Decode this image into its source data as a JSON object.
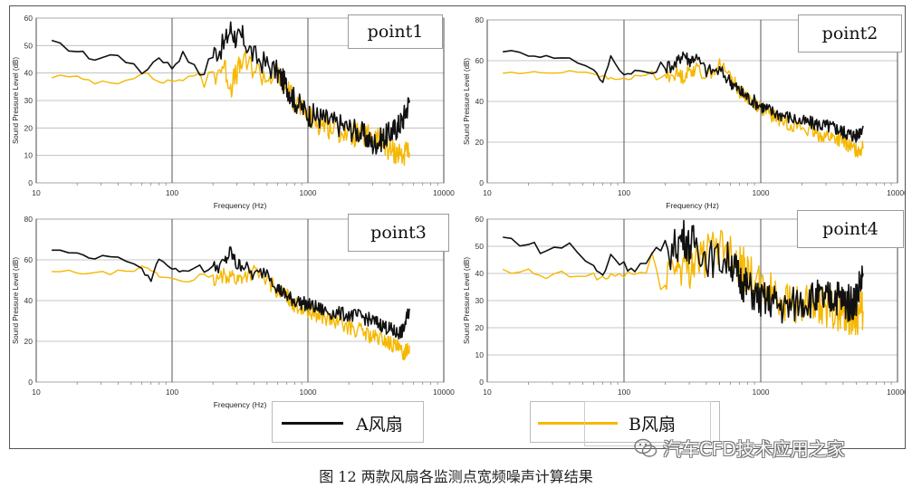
{
  "figure": {
    "caption": "图 12  两款风扇各监测点宽频噪声计算结果",
    "watermark": "汽车CFD技术应用之家",
    "legend": [
      {
        "label": "A风扇",
        "color": "#111111"
      },
      {
        "label": "B风扇",
        "color": "#f5b800"
      }
    ]
  },
  "chart_data": [
    {
      "type": "line",
      "title": "point1",
      "xlabel": "Frequency (Hz)",
      "ylabel": "Sound Pressure Level (dB)",
      "xscale": "log",
      "xlim": [
        10,
        10000
      ],
      "ylim": [
        0,
        60
      ],
      "yticks": [
        0,
        10,
        20,
        30,
        40,
        50,
        60
      ],
      "xticks": [
        10,
        100,
        1000,
        10000
      ],
      "grid": true,
      "series": [
        {
          "name": "A风扇",
          "color": "#111111",
          "x": [
            13,
            20,
            27,
            40,
            60,
            80,
            100,
            120,
            160,
            200,
            240,
            270,
            300,
            330,
            400,
            500,
            600,
            700,
            800,
            1000,
            1200,
            1500,
            2000,
            2500,
            3000,
            3500,
            4000,
            4500,
            5000,
            5600
          ],
          "y": [
            51,
            48,
            45,
            47,
            40,
            46,
            42,
            47,
            40,
            47,
            50,
            56,
            52,
            53,
            46,
            43,
            40,
            35,
            30,
            25,
            24,
            22,
            20,
            18,
            14,
            16,
            18,
            20,
            23,
            30
          ],
          "noise": 4.5
        },
        {
          "name": "B风扇",
          "color": "#f5b800",
          "x": [
            13,
            20,
            27,
            40,
            60,
            80,
            100,
            120,
            160,
            200,
            240,
            270,
            300,
            330,
            400,
            500,
            600,
            700,
            800,
            1000,
            1200,
            1500,
            2000,
            2500,
            3000,
            3500,
            4000,
            4500,
            5000,
            5600
          ],
          "y": [
            39,
            38,
            37,
            37,
            40,
            37,
            37,
            38,
            38,
            39,
            43,
            35,
            40,
            44,
            42,
            38,
            40,
            34,
            30,
            24,
            22,
            20,
            18,
            17,
            17,
            15,
            12,
            11,
            10,
            11
          ],
          "noise": 4.5
        }
      ]
    },
    {
      "type": "line",
      "title": "point2",
      "xlabel": "Frequency (Hz)",
      "ylabel": "Sound Pressure Level (dB)",
      "xscale": "log",
      "xlim": [
        10,
        10000
      ],
      "ylim": [
        0,
        80
      ],
      "yticks": [
        0,
        20,
        40,
        60,
        80
      ],
      "xticks": [
        10,
        100,
        1000,
        10000
      ],
      "grid": true,
      "series": [
        {
          "name": "A风扇",
          "color": "#111111",
          "x": [
            13,
            20,
            27,
            40,
            60,
            70,
            80,
            100,
            120,
            160,
            200,
            240,
            270,
            300,
            330,
            400,
            500,
            600,
            700,
            800,
            1000,
            1200,
            1500,
            2000,
            2500,
            3000,
            3500,
            4000,
            4500,
            5000,
            5600
          ],
          "y": [
            65,
            63,
            62,
            61,
            56,
            49,
            62,
            53,
            55,
            54,
            57,
            58,
            64,
            60,
            62,
            55,
            55,
            50,
            45,
            42,
            38,
            35,
            33,
            30,
            29,
            28,
            27,
            25,
            24,
            23,
            28
          ],
          "noise": 3.5
        },
        {
          "name": "B风扇",
          "color": "#f5b800",
          "x": [
            13,
            20,
            27,
            40,
            60,
            70,
            80,
            100,
            120,
            160,
            200,
            240,
            270,
            300,
            330,
            400,
            500,
            600,
            700,
            800,
            1000,
            1200,
            1500,
            2000,
            2500,
            3000,
            3500,
            4000,
            4500,
            5000,
            5600
          ],
          "y": [
            54,
            54,
            54,
            55,
            54,
            52,
            51,
            51,
            52,
            53,
            52,
            54,
            52,
            55,
            56,
            53,
            58,
            52,
            45,
            42,
            37,
            33,
            30,
            27,
            24,
            23,
            22,
            20,
            18,
            16,
            17
          ],
          "noise": 3.5
        }
      ]
    },
    {
      "type": "line",
      "title": "point3",
      "xlabel": "Frequency (Hz)",
      "ylabel": "Sound Pressure Level (dB)",
      "xscale": "log",
      "xlim": [
        10,
        10000
      ],
      "ylim": [
        0,
        80
      ],
      "yticks": [
        0,
        20,
        40,
        60,
        80
      ],
      "xticks": [
        10,
        100,
        1000,
        10000
      ],
      "grid": true,
      "series": [
        {
          "name": "A风扇",
          "color": "#111111",
          "x": [
            13,
            20,
            27,
            40,
            60,
            70,
            80,
            100,
            120,
            160,
            200,
            240,
            270,
            300,
            330,
            400,
            500,
            600,
            700,
            800,
            1000,
            1200,
            1500,
            2000,
            2500,
            3000,
            3500,
            4000,
            4500,
            5000,
            5600
          ],
          "y": [
            65,
            63,
            61,
            62,
            55,
            50,
            61,
            56,
            54,
            57,
            56,
            58,
            64,
            57,
            58,
            52,
            55,
            46,
            42,
            40,
            38,
            36,
            34,
            33,
            32,
            30,
            28,
            26,
            24,
            25,
            36
          ],
          "noise": 3.5
        },
        {
          "name": "B风扇",
          "color": "#f5b800",
          "x": [
            13,
            20,
            27,
            40,
            60,
            70,
            80,
            100,
            120,
            160,
            200,
            240,
            270,
            300,
            330,
            400,
            500,
            600,
            700,
            800,
            1000,
            1200,
            1500,
            2000,
            2500,
            3000,
            3500,
            4000,
            4500,
            5000,
            5600
          ],
          "y": [
            54,
            54,
            53,
            54,
            56,
            55,
            52,
            51,
            50,
            50,
            49,
            52,
            53,
            50,
            52,
            54,
            50,
            45,
            42,
            38,
            35,
            33,
            30,
            27,
            25,
            22,
            21,
            19,
            17,
            14,
            18
          ],
          "noise": 4
        }
      ]
    },
    {
      "type": "line",
      "title": "point4",
      "xlabel": "Frequency (Hz)",
      "ylabel": "Sound Pressure Level (dB)",
      "xscale": "log",
      "xlim": [
        10,
        10000
      ],
      "ylim": [
        0,
        60
      ],
      "yticks": [
        0,
        10,
        20,
        30,
        40,
        50,
        60
      ],
      "xticks": [
        10,
        100,
        1000,
        10000
      ],
      "grid": true,
      "series": [
        {
          "name": "A风扇",
          "color": "#111111",
          "x": [
            13,
            20,
            27,
            40,
            60,
            70,
            80,
            100,
            120,
            160,
            200,
            240,
            270,
            300,
            330,
            400,
            500,
            600,
            700,
            800,
            1000,
            1200,
            1500,
            2000,
            2500,
            3000,
            3500,
            4000,
            4500,
            5000,
            5600
          ],
          "y": [
            53,
            51,
            48,
            51,
            42,
            39,
            47,
            43,
            42,
            45,
            46,
            50,
            54,
            50,
            52,
            46,
            45,
            45,
            38,
            35,
            30,
            30,
            27,
            30,
            31,
            30,
            32,
            30,
            29,
            31,
            40
          ],
          "noise": 7
        },
        {
          "name": "B风扇",
          "color": "#f5b800",
          "x": [
            13,
            20,
            27,
            40,
            60,
            70,
            80,
            100,
            120,
            160,
            200,
            240,
            270,
            300,
            330,
            400,
            500,
            600,
            700,
            800,
            1000,
            1200,
            1500,
            2000,
            2500,
            3000,
            3500,
            4000,
            4500,
            5000,
            5600
          ],
          "y": [
            40,
            40,
            39,
            39,
            39,
            38,
            39,
            40,
            40,
            40,
            40,
            44,
            43,
            42,
            45,
            46,
            52,
            48,
            44,
            40,
            34,
            33,
            30,
            28,
            27,
            28,
            27,
            26,
            25,
            25,
            26
          ],
          "noise": 8
        }
      ]
    }
  ]
}
